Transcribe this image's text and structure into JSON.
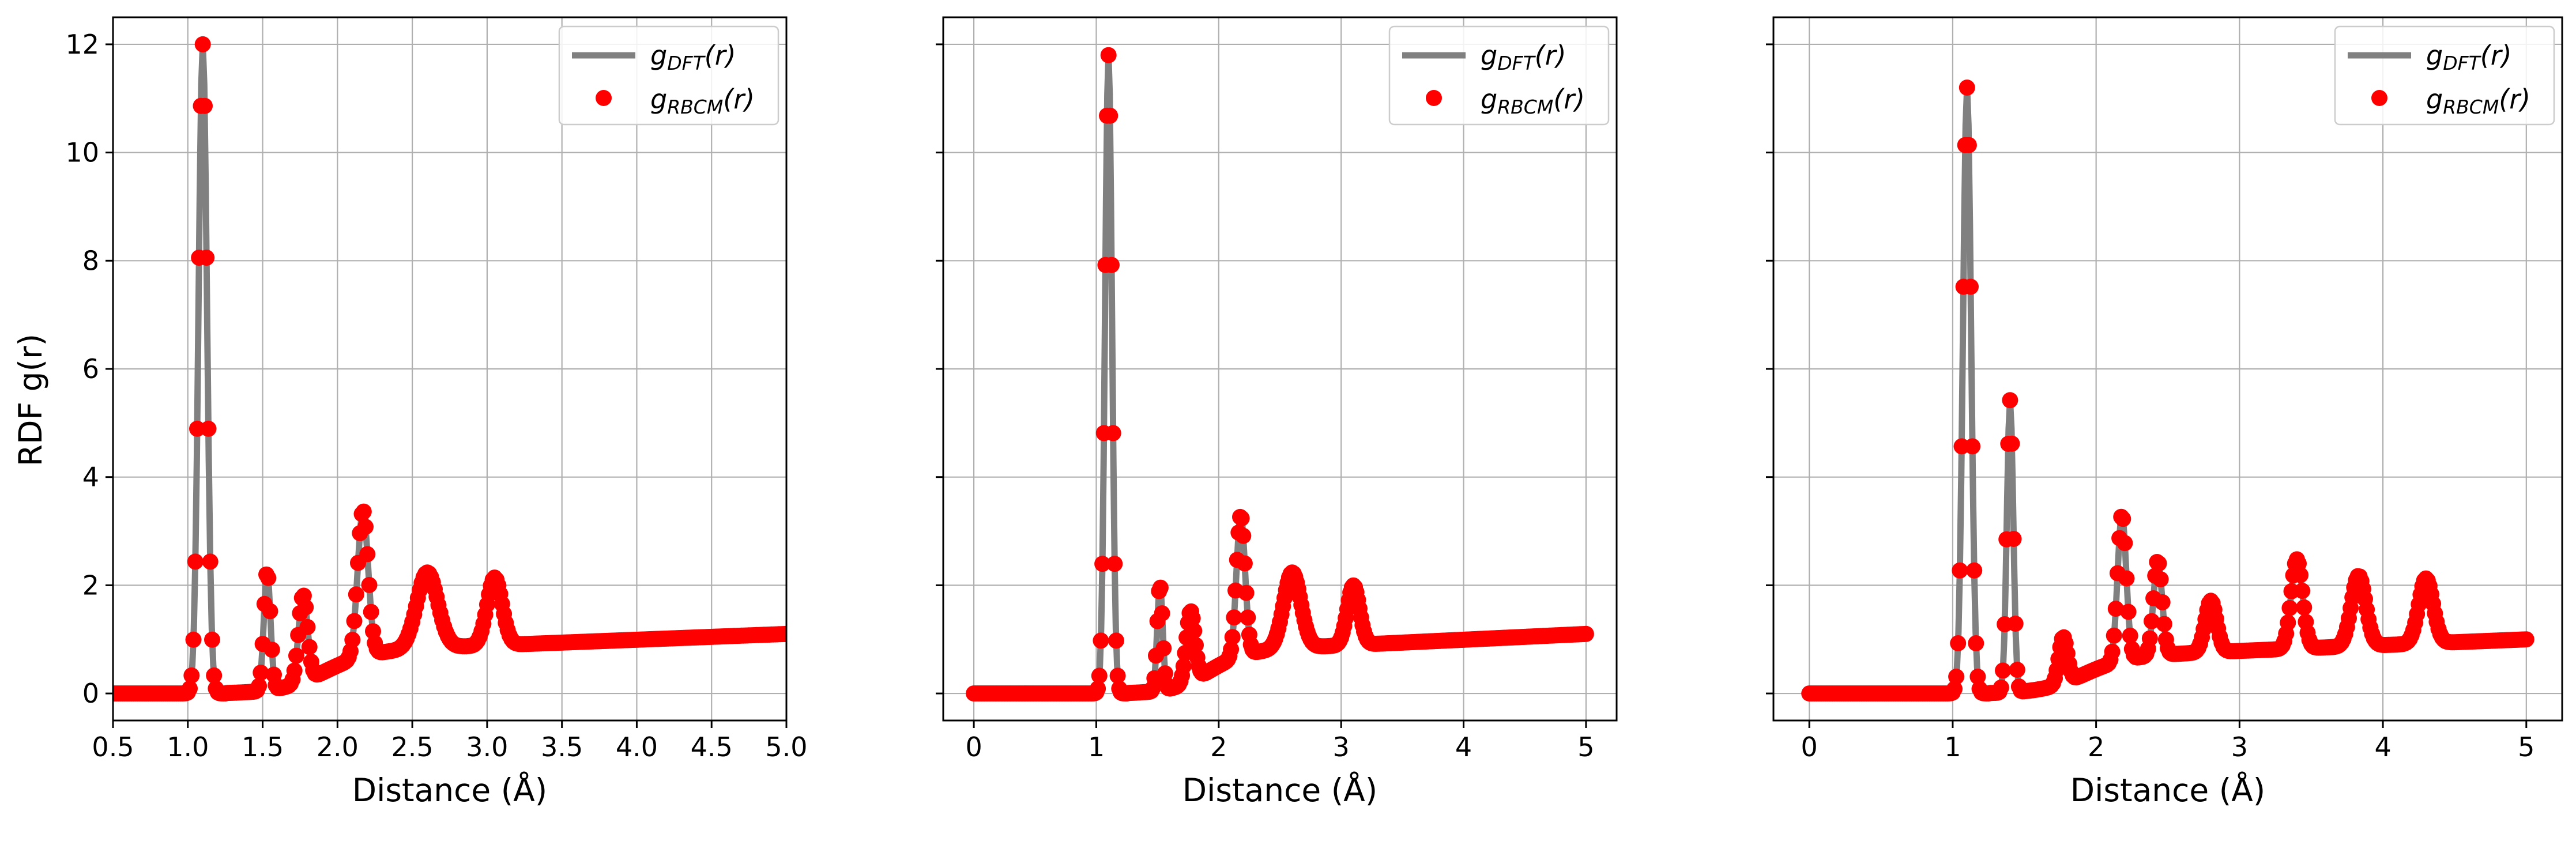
{
  "chart_data": [
    {
      "type": "line",
      "xlabel": "Distance (Å)",
      "ylabel": "RDF g(r)",
      "xlim": [
        0.5,
        5.0
      ],
      "ylim": [
        -0.5,
        12.5
      ],
      "xticks": [
        "0.5",
        "1.0",
        "1.5",
        "2.0",
        "2.5",
        "3.0",
        "3.5",
        "4.0",
        "4.5",
        "5.0"
      ],
      "xtick_values": [
        0.5,
        1.0,
        1.5,
        2.0,
        2.5,
        3.0,
        3.5,
        4.0,
        4.5,
        5.0
      ],
      "yticks": [
        "0",
        "2",
        "4",
        "6",
        "8",
        "10",
        "12"
      ],
      "ytick_values": [
        0,
        2,
        4,
        6,
        8,
        10,
        12
      ],
      "grid": true,
      "legend": "top-right",
      "legend_entries": [
        {
          "base": "g",
          "sub": "DFT",
          "arg": "(r)"
        },
        {
          "base": "g",
          "sub": "RBCM",
          "arg": "(r)"
        }
      ],
      "peaks": [
        [
          1.1,
          12.0,
          0.028
        ],
        [
          1.53,
          2.2,
          0.022
        ],
        [
          1.77,
          1.6,
          0.03
        ],
        [
          2.17,
          2.7,
          0.035
        ],
        [
          2.6,
          1.4,
          0.07
        ],
        [
          3.05,
          1.25,
          0.05
        ]
      ],
      "background": [
        0.7,
        1.1
      ],
      "series": [
        {
          "name": "gDFT(r)",
          "style": "line",
          "color": "#808080"
        },
        {
          "name": "gRBCM(r)",
          "style": "markers",
          "color": "#ff0000"
        }
      ]
    },
    {
      "type": "line",
      "xlabel": "Distance (Å)",
      "xlim": [
        -0.25,
        5.25
      ],
      "ylim": [
        -0.5,
        12.5
      ],
      "xticks": [
        "0",
        "1",
        "2",
        "3",
        "4",
        "5"
      ],
      "xtick_values": [
        0,
        1,
        2,
        3,
        4,
        5
      ],
      "yticks": [],
      "ytick_values": [
        0,
        2,
        4,
        6,
        8,
        10,
        12
      ],
      "grid": true,
      "legend": "top-right",
      "legend_entries": [
        {
          "base": "g",
          "sub": "DFT",
          "arg": "(r)"
        },
        {
          "base": "g",
          "sub": "RBCM",
          "arg": "(r)"
        }
      ],
      "peaks": [
        [
          1.1,
          11.8,
          0.028
        ],
        [
          1.52,
          1.95,
          0.022
        ],
        [
          1.77,
          1.3,
          0.035
        ],
        [
          2.18,
          2.6,
          0.035
        ],
        [
          2.6,
          1.4,
          0.07
        ],
        [
          3.1,
          1.1,
          0.05
        ]
      ],
      "background": [
        0.7,
        1.1
      ],
      "series": [
        {
          "name": "gDFT(r)",
          "style": "line",
          "color": "#808080"
        },
        {
          "name": "gRBCM(r)",
          "style": "markers",
          "color": "#ff0000"
        }
      ]
    },
    {
      "type": "line",
      "xlabel": "Distance (Å)",
      "xlim": [
        -0.25,
        5.25
      ],
      "ylim": [
        -0.5,
        12.5
      ],
      "xticks": [
        "0",
        "1",
        "2",
        "3",
        "4",
        "5"
      ],
      "xtick_values": [
        0,
        1,
        2,
        3,
        4,
        5
      ],
      "yticks": [],
      "ytick_values": [
        0,
        2,
        4,
        6,
        8,
        10,
        12
      ],
      "grid": true,
      "legend": "top-right",
      "legend_entries": [
        {
          "base": "g",
          "sub": "DFT",
          "arg": "(r)"
        },
        {
          "base": "g",
          "sub": "RBCM",
          "arg": "(r)"
        }
      ],
      "peaks": [
        [
          1.1,
          11.2,
          0.028
        ],
        [
          1.4,
          5.4,
          0.022
        ],
        [
          1.77,
          0.85,
          0.03
        ],
        [
          2.18,
          2.7,
          0.03
        ],
        [
          2.43,
          1.75,
          0.03
        ],
        [
          2.8,
          0.95,
          0.04
        ],
        [
          3.4,
          1.65,
          0.04
        ],
        [
          3.83,
          1.3,
          0.05
        ],
        [
          4.3,
          1.2,
          0.05
        ]
      ],
      "background": [
        0.6,
        1.0
      ],
      "series": [
        {
          "name": "gDFT(r)",
          "style": "line",
          "color": "#808080"
        },
        {
          "name": "gRBCM(r)",
          "style": "markers",
          "color": "#ff0000"
        }
      ]
    }
  ]
}
